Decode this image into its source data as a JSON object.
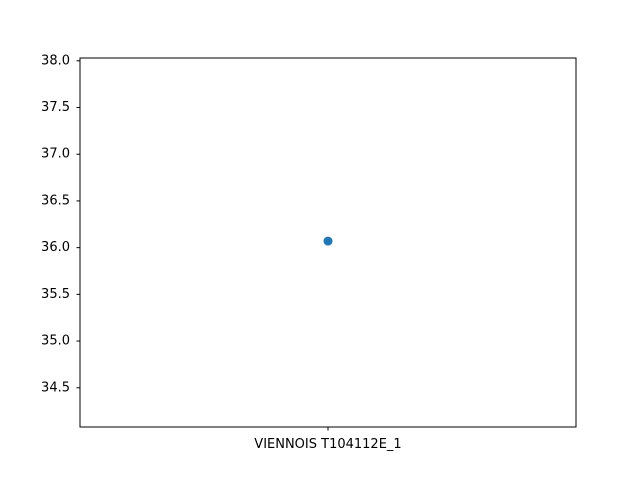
{
  "chart_data": {
    "type": "scatter",
    "categories": [
      "VIENNOIS T104112E_1"
    ],
    "values": [
      36.07
    ],
    "title": "",
    "xlabel": "",
    "ylabel": "",
    "ylim": [
      34.08,
      38.03
    ],
    "yticks": [
      34.5,
      35.0,
      35.5,
      36.0,
      36.5,
      37.0,
      37.5,
      38.0
    ],
    "ytick_labels": [
      "34.5",
      "35.0",
      "35.5",
      "36.0",
      "36.5",
      "37.0",
      "37.5",
      "38.0"
    ],
    "grid": false,
    "legend": "none",
    "colors": {
      "marker": "#1f77b4",
      "axis": "#000000",
      "background": "#ffffff"
    }
  }
}
